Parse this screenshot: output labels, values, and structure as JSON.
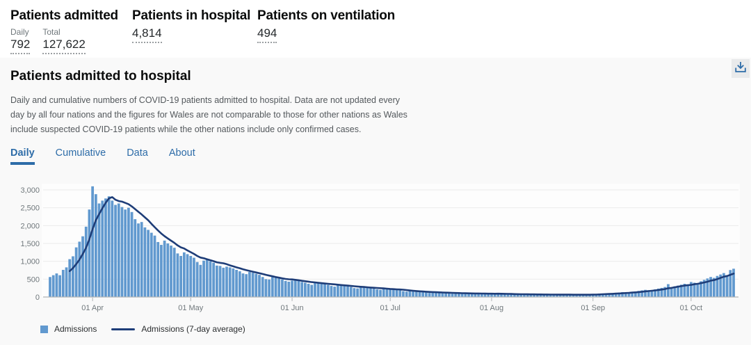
{
  "summary": {
    "groups": [
      {
        "title": "Patients admitted",
        "metrics": [
          {
            "label": "Daily",
            "value": "792"
          },
          {
            "label": "Total",
            "value": "127,622"
          }
        ]
      },
      {
        "title": "Patients in hospital",
        "metrics": [
          {
            "label": "",
            "value": "4,814"
          }
        ]
      },
      {
        "title": "Patients on ventilation",
        "metrics": [
          {
            "label": "",
            "value": "494"
          }
        ]
      }
    ]
  },
  "card": {
    "title": "Patients admitted to hospital",
    "description": "Daily and cumulative numbers of COVID-19 patients admitted to hospital. Data are not updated every day by all four nations and the figures for Wales are not comparable to those for other nations as Wales include suspected COVID-19 patients while the other nations include only confirmed cases."
  },
  "tabs": {
    "items": [
      {
        "label": "Daily",
        "active": true
      },
      {
        "label": "Cumulative",
        "active": false
      },
      {
        "label": "Data",
        "active": false
      },
      {
        "label": "About",
        "active": false
      }
    ]
  },
  "legend": {
    "bar_label": "Admissions",
    "line_label": "Admissions (7-day average)"
  },
  "colors": {
    "bar": "#6199cf",
    "line": "#1e3d78",
    "accent": "#2d6ca8",
    "axis_text": "#6f777b",
    "grid": "#ebebeb",
    "baseline": "#b1b4b6",
    "plot_bg": "#fdfdfd"
  },
  "chart_data": {
    "type": "bar",
    "title": "Patients admitted to hospital (Daily)",
    "ylim": [
      0,
      3000
    ],
    "grid": true,
    "legend_position": "bottom",
    "y_ticks": [
      {
        "label": "0",
        "value": 0
      },
      {
        "label": "500",
        "value": 500
      },
      {
        "label": "1,000",
        "value": 1000
      },
      {
        "label": "1,500",
        "value": 1500
      },
      {
        "label": "2,000",
        "value": 2000
      },
      {
        "label": "2,500",
        "value": 2500
      },
      {
        "label": "3,000",
        "value": 3000
      }
    ],
    "x_ticks": [
      {
        "label": "01 Apr",
        "day_index": 13
      },
      {
        "label": "01 May",
        "day_index": 43
      },
      {
        "label": "01 Jun",
        "day_index": 74
      },
      {
        "label": "01 Jul",
        "day_index": 104
      },
      {
        "label": "01 Aug",
        "day_index": 135
      },
      {
        "label": "01 Sep",
        "day_index": 166
      },
      {
        "label": "01 Oct",
        "day_index": 196
      }
    ],
    "series": [
      {
        "name": "Admissions",
        "type": "bar",
        "values": [
          560,
          610,
          660,
          610,
          760,
          830,
          1060,
          1140,
          1390,
          1550,
          1700,
          1970,
          2450,
          3100,
          2880,
          2620,
          2700,
          2760,
          2820,
          2700,
          2580,
          2620,
          2520,
          2450,
          2500,
          2380,
          2180,
          2060,
          2100,
          1950,
          1880,
          1800,
          1720,
          1540,
          1460,
          1580,
          1500,
          1440,
          1380,
          1220,
          1150,
          1250,
          1200,
          1150,
          1100,
          980,
          900,
          1020,
          1060,
          1000,
          960,
          880,
          870,
          820,
          850,
          830,
          800,
          760,
          720,
          660,
          640,
          700,
          680,
          650,
          620,
          560,
          500,
          490,
          560,
          540,
          520,
          490,
          450,
          430,
          460,
          480,
          450,
          420,
          400,
          370,
          340,
          410,
          390,
          380,
          360,
          340,
          310,
          290,
          340,
          330,
          320,
          300,
          280,
          250,
          240,
          290,
          280,
          265,
          250,
          235,
          215,
          200,
          240,
          230,
          215,
          205,
          195,
          185,
          165,
          150,
          170,
          160,
          150,
          145,
          135,
          125,
          115,
          140,
          130,
          125,
          120,
          110,
          100,
          95,
          115,
          110,
          105,
          100,
          95,
          90,
          85,
          105,
          100,
          95,
          90,
          88,
          82,
          95,
          90,
          85,
          80,
          75,
          70,
          65,
          85,
          80,
          78,
          72,
          68,
          62,
          58,
          78,
          74,
          70,
          66,
          62,
          57,
          55,
          75,
          72,
          68,
          65,
          62,
          58,
          55,
          72,
          80,
          88,
          95,
          92,
          86,
          82,
          105,
          115,
          125,
          135,
          125,
          118,
          145,
          155,
          170,
          185,
          200,
          190,
          180,
          215,
          235,
          255,
          280,
          360,
          265,
          300,
          320,
          345,
          370,
          355,
          420,
          400,
          385,
          440,
          480,
          520,
          560,
          535,
          590,
          630,
          670,
          610,
          755,
          792
        ]
      },
      {
        "name": "Admissions (7-day average)",
        "type": "line",
        "derivation": "trailing 7-day mean of Admissions values"
      }
    ]
  }
}
